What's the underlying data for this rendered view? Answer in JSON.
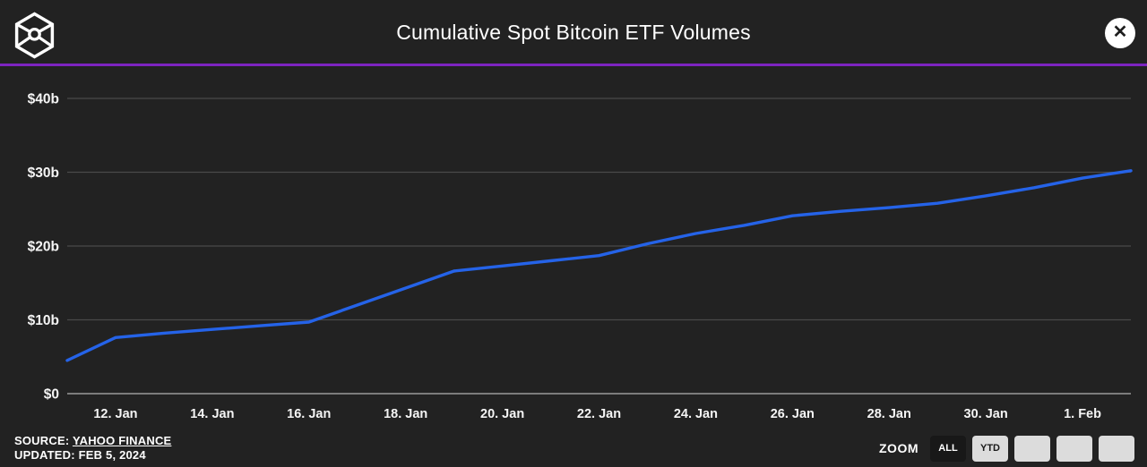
{
  "header": {
    "title": "Cumulative Spot Bitcoin ETF Volumes",
    "logo_name": "the-block-cube-logo",
    "close_glyph": "✕"
  },
  "colors": {
    "background": "#222222",
    "line": "#2563e8",
    "divider": "#7d24c0",
    "grid": "#4a4a4a",
    "axis_line": "#9a9a9a",
    "tick_text": "#f5f5f5",
    "button_light": "#dcdcdc",
    "button_dark": "#181818"
  },
  "chart_data": {
    "type": "line",
    "title": "Cumulative Spot Bitcoin ETF Volumes",
    "unit": "billions USD",
    "grid": true,
    "ylim": [
      0,
      40
    ],
    "x": [
      "11. Jan",
      "12. Jan",
      "13. Jan",
      "14. Jan",
      "15. Jan",
      "16. Jan",
      "17. Jan",
      "18. Jan",
      "19. Jan",
      "20. Jan",
      "21. Jan",
      "22. Jan",
      "23. Jan",
      "24. Jan",
      "25. Jan",
      "26. Jan",
      "27. Jan",
      "28. Jan",
      "29. Jan",
      "30. Jan",
      "31. Jan",
      "1. Feb",
      "2. Feb"
    ],
    "values": [
      4.5,
      7.6,
      8.2,
      8.7,
      9.2,
      9.7,
      12.0,
      14.3,
      16.6,
      17.3,
      18.0,
      18.7,
      20.3,
      21.7,
      22.8,
      24.1,
      24.7,
      25.2,
      25.8,
      26.8,
      27.9,
      29.2,
      30.2
    ],
    "y_ticks": [
      {
        "value": 0,
        "label": "$0"
      },
      {
        "value": 10,
        "label": "$10b"
      },
      {
        "value": 20,
        "label": "$20b"
      },
      {
        "value": 30,
        "label": "$30b"
      },
      {
        "value": 40,
        "label": "$40b"
      }
    ],
    "x_ticks": [
      {
        "index": 1,
        "label": "12. Jan"
      },
      {
        "index": 3,
        "label": "14. Jan"
      },
      {
        "index": 5,
        "label": "16. Jan"
      },
      {
        "index": 7,
        "label": "18. Jan"
      },
      {
        "index": 9,
        "label": "20. Jan"
      },
      {
        "index": 11,
        "label": "22. Jan"
      },
      {
        "index": 13,
        "label": "24. Jan"
      },
      {
        "index": 15,
        "label": "26. Jan"
      },
      {
        "index": 17,
        "label": "28. Jan"
      },
      {
        "index": 19,
        "label": "30. Jan"
      },
      {
        "index": 21,
        "label": "1. Feb"
      }
    ]
  },
  "footer": {
    "source_prefix": "SOURCE: ",
    "source_link": "YAHOO FINANCE",
    "updated": "UPDATED: FEB 5, 2024",
    "zoom_label": "ZOOM",
    "zoom_buttons": [
      {
        "label": "ALL",
        "active": true
      },
      {
        "label": "YTD",
        "active": false
      },
      {
        "label": "",
        "active": false
      },
      {
        "label": "",
        "active": false
      },
      {
        "label": "",
        "active": false
      }
    ]
  }
}
